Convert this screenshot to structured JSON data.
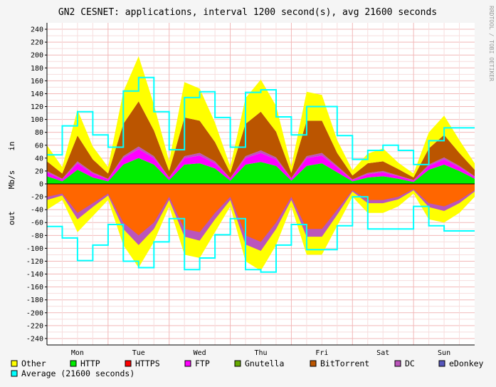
{
  "chart_data": {
    "type": "area",
    "title": "GN2 CESNET: applications, interval 1200 second(s), avg 21600 seconds",
    "side_label": "RRDTOOL / TOBI OETIKER",
    "ylabel": "Mb/s",
    "ylabel_in": "in",
    "ylabel_out": "out",
    "ylim": [
      -250,
      250
    ],
    "y_ticks": [
      240,
      220,
      200,
      180,
      160,
      140,
      120,
      100,
      80,
      60,
      40,
      20,
      0,
      -20,
      -40,
      -60,
      -80,
      -100,
      -120,
      -140,
      -160,
      -180,
      -200,
      -220,
      -240
    ],
    "x_ticks": [
      "Mon",
      "Tue",
      "Wed",
      "Thu",
      "Fri",
      "Sat",
      "Sun"
    ],
    "x_range_days": [
      0.0,
      7.0
    ],
    "grid": true,
    "legend_position": "bottom",
    "colors": {
      "Other": "#ffff00",
      "HTTP": "#00ee00",
      "HTTPS": "#ff0000",
      "FTP": "#ff00ff",
      "Gnutella": "#66aa00",
      "BitTorrent": "#bb5500",
      "DC": "#bb55bb",
      "eDonkey": "#5555bb",
      "Average": "#00ffff",
      "Out": "#ff6600"
    },
    "legend": [
      {
        "name": "Other",
        "color": "#ffff00"
      },
      {
        "name": "HTTP",
        "color": "#00ee00"
      },
      {
        "name": "HTTPS",
        "color": "#ff0000"
      },
      {
        "name": "FTP",
        "color": "#ff00ff"
      },
      {
        "name": "Gnutella",
        "color": "#66aa00"
      },
      {
        "name": "BitTorrent",
        "color": "#bb5500"
      },
      {
        "name": "DC",
        "color": "#bb55bb"
      },
      {
        "name": "eDonkey",
        "color": "#5555bb"
      },
      {
        "name": "Average (21600 seconds)",
        "color": "#00ffff"
      }
    ],
    "series_in": {
      "x": [
        0.0,
        0.25,
        0.5,
        0.75,
        1.0,
        1.25,
        1.5,
        1.75,
        2.0,
        2.25,
        2.5,
        2.75,
        3.0,
        3.25,
        3.5,
        3.75,
        4.0,
        4.25,
        4.5,
        4.75,
        5.0,
        5.25,
        5.5,
        5.75,
        6.0,
        6.25,
        6.5,
        6.75,
        7.0
      ],
      "HTTP": [
        12,
        4,
        22,
        10,
        4,
        30,
        40,
        30,
        6,
        30,
        32,
        24,
        5,
        30,
        34,
        28,
        5,
        28,
        32,
        18,
        4,
        10,
        12,
        8,
        3,
        22,
        30,
        20,
        8
      ],
      "FTP": [
        6,
        3,
        10,
        6,
        3,
        10,
        14,
        10,
        3,
        10,
        12,
        8,
        3,
        10,
        14,
        10,
        3,
        12,
        12,
        8,
        2,
        5,
        6,
        4,
        2,
        6,
        8,
        6,
        3
      ],
      "DC": [
        2,
        1,
        3,
        2,
        1,
        3,
        4,
        3,
        1,
        3,
        4,
        3,
        1,
        3,
        4,
        3,
        1,
        3,
        4,
        2,
        1,
        2,
        2,
        1,
        1,
        2,
        3,
        2,
        1
      ],
      "BitTorrent": [
        15,
        8,
        40,
        20,
        8,
        50,
        70,
        40,
        10,
        60,
        50,
        30,
        8,
        50,
        60,
        40,
        8,
        55,
        50,
        20,
        6,
        15,
        15,
        10,
        4,
        25,
        35,
        20,
        10
      ],
      "Other": [
        25,
        10,
        40,
        20,
        10,
        50,
        70,
        40,
        15,
        55,
        50,
        30,
        10,
        40,
        50,
        40,
        10,
        45,
        40,
        20,
        8,
        15,
        20,
        10,
        6,
        25,
        30,
        20,
        10
      ],
      "Average": [
        45,
        90,
        112,
        76,
        57,
        144,
        165,
        112,
        53,
        134,
        143,
        103,
        57,
        142,
        146,
        104,
        76,
        120,
        120,
        75,
        38,
        52,
        60,
        52,
        30,
        67,
        87,
        87,
        87
      ]
    },
    "series_out": {
      "x": [
        0.0,
        0.25,
        0.5,
        0.75,
        1.0,
        1.25,
        1.5,
        1.75,
        2.0,
        2.25,
        2.5,
        2.75,
        3.0,
        3.25,
        3.5,
        3.75,
        4.0,
        4.25,
        4.5,
        4.75,
        5.0,
        5.25,
        5.5,
        5.75,
        6.0,
        6.25,
        6.5,
        6.75,
        7.0
      ],
      "Main": [
        -20,
        -15,
        -45,
        -30,
        -15,
        -60,
        -80,
        -60,
        -20,
        -70,
        -75,
        -45,
        -20,
        -80,
        -90,
        -60,
        -20,
        -70,
        -70,
        -40,
        -10,
        -25,
        -25,
        -20,
        -8,
        -30,
        -35,
        -25,
        -10
      ],
      "Purple": [
        -25,
        -18,
        -55,
        -36,
        -18,
        -70,
        -95,
        -70,
        -25,
        -82,
        -88,
        -55,
        -25,
        -94,
        -104,
        -70,
        -25,
        -82,
        -82,
        -48,
        -12,
        -30,
        -30,
        -24,
        -10,
        -36,
        -42,
        -30,
        -12
      ],
      "Other": [
        -40,
        -25,
        -75,
        -50,
        -25,
        -95,
        -130,
        -90,
        -35,
        -110,
        -115,
        -75,
        -35,
        -120,
        -135,
        -95,
        -35,
        -110,
        -110,
        -65,
        -20,
        -45,
        -45,
        -35,
        -15,
        -55,
        -60,
        -45,
        -20
      ],
      "Average": [
        -66,
        -84,
        -119,
        -95,
        -63,
        -120,
        -130,
        -90,
        -54,
        -133,
        -115,
        -79,
        -54,
        -133,
        -137,
        -95,
        -63,
        -102,
        -102,
        -65,
        -20,
        -70,
        -70,
        -70,
        -35,
        -65,
        -73,
        -73,
        -73
      ]
    }
  }
}
